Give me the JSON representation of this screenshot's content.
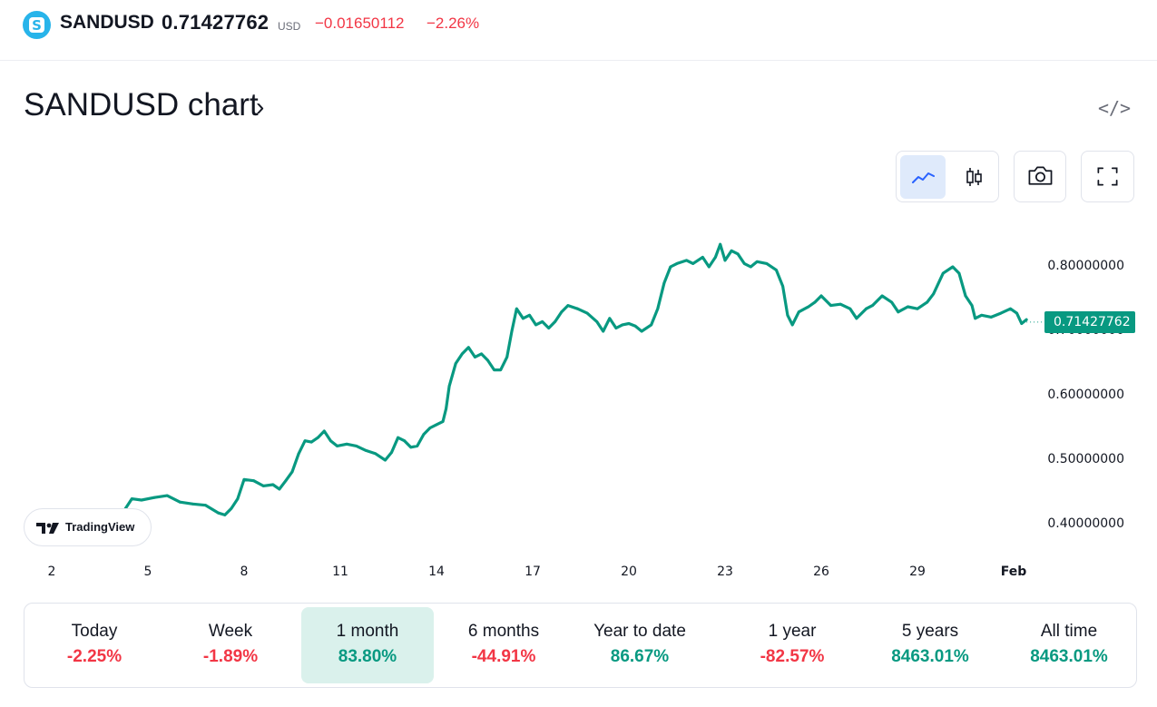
{
  "ticker": {
    "symbol": "SANDUSD",
    "logo_letter": "S",
    "price": "0.71427762",
    "currency": "USD",
    "change": "−0.01650112",
    "change_pct": "−2.26%"
  },
  "chart_header": {
    "title": "SANDUSD chart",
    "arrow": "›",
    "embed_icon": "code-embed-icon",
    "embed_symbol": "</>"
  },
  "toolbar": {
    "line_style_icon": "line-chart-icon",
    "candle_style_icon": "candlestick-icon",
    "snapshot_icon": "camera-icon",
    "fullscreen_icon": "fullscreen-icon",
    "active_style": "line"
  },
  "colors": {
    "line": "#089981",
    "negative": "#f23645",
    "positive": "#089981",
    "active_period_bg": "#daf1ec",
    "active_style_bg": "#dfeafb"
  },
  "chart_data": {
    "type": "line",
    "series": [
      {
        "points": [
          [
            4.3,
            0.425
          ],
          [
            4.5,
            0.44
          ],
          [
            4.8,
            0.438
          ],
          [
            5.2,
            0.442
          ],
          [
            5.6,
            0.445
          ],
          [
            6.0,
            0.435
          ],
          [
            6.4,
            0.432
          ],
          [
            6.8,
            0.43
          ],
          [
            7.2,
            0.418
          ],
          [
            7.4,
            0.415
          ],
          [
            7.6,
            0.425
          ],
          [
            7.8,
            0.44
          ],
          [
            8.0,
            0.47
          ],
          [
            8.3,
            0.468
          ],
          [
            8.6,
            0.46
          ],
          [
            8.9,
            0.462
          ],
          [
            9.1,
            0.455
          ],
          [
            9.3,
            0.468
          ],
          [
            9.5,
            0.482
          ],
          [
            9.7,
            0.51
          ],
          [
            9.9,
            0.53
          ],
          [
            10.1,
            0.528
          ],
          [
            10.3,
            0.535
          ],
          [
            10.5,
            0.545
          ],
          [
            10.7,
            0.53
          ],
          [
            10.9,
            0.522
          ],
          [
            11.2,
            0.525
          ],
          [
            11.5,
            0.522
          ],
          [
            11.8,
            0.515
          ],
          [
            12.1,
            0.51
          ],
          [
            12.4,
            0.5
          ],
          [
            12.6,
            0.512
          ],
          [
            12.8,
            0.535
          ],
          [
            13.0,
            0.53
          ],
          [
            13.2,
            0.52
          ],
          [
            13.4,
            0.522
          ],
          [
            13.6,
            0.54
          ],
          [
            13.8,
            0.55
          ],
          [
            14.0,
            0.555
          ],
          [
            14.2,
            0.56
          ],
          [
            14.3,
            0.58
          ],
          [
            14.4,
            0.615
          ],
          [
            14.6,
            0.65
          ],
          [
            14.8,
            0.665
          ],
          [
            15.0,
            0.675
          ],
          [
            15.2,
            0.66
          ],
          [
            15.4,
            0.665
          ],
          [
            15.6,
            0.655
          ],
          [
            15.8,
            0.64
          ],
          [
            16.0,
            0.64
          ],
          [
            16.2,
            0.66
          ],
          [
            16.35,
            0.7
          ],
          [
            16.5,
            0.735
          ],
          [
            16.7,
            0.72
          ],
          [
            16.9,
            0.725
          ],
          [
            17.1,
            0.71
          ],
          [
            17.3,
            0.715
          ],
          [
            17.5,
            0.705
          ],
          [
            17.7,
            0.715
          ],
          [
            17.9,
            0.73
          ],
          [
            18.1,
            0.74
          ],
          [
            18.4,
            0.735
          ],
          [
            18.7,
            0.728
          ],
          [
            19.0,
            0.715
          ],
          [
            19.2,
            0.7
          ],
          [
            19.4,
            0.72
          ],
          [
            19.6,
            0.705
          ],
          [
            19.8,
            0.71
          ],
          [
            20.0,
            0.712
          ],
          [
            20.2,
            0.708
          ],
          [
            20.4,
            0.7
          ],
          [
            20.7,
            0.71
          ],
          [
            20.9,
            0.735
          ],
          [
            21.1,
            0.775
          ],
          [
            21.3,
            0.8
          ],
          [
            21.5,
            0.805
          ],
          [
            21.8,
            0.81
          ],
          [
            22.0,
            0.805
          ],
          [
            22.3,
            0.815
          ],
          [
            22.5,
            0.8
          ],
          [
            22.7,
            0.815
          ],
          [
            22.85,
            0.835
          ],
          [
            23.0,
            0.81
          ],
          [
            23.2,
            0.825
          ],
          [
            23.4,
            0.82
          ],
          [
            23.6,
            0.805
          ],
          [
            23.8,
            0.8
          ],
          [
            24.0,
            0.808
          ],
          [
            24.3,
            0.805
          ],
          [
            24.6,
            0.795
          ],
          [
            24.8,
            0.77
          ],
          [
            24.95,
            0.725
          ],
          [
            25.1,
            0.71
          ],
          [
            25.3,
            0.73
          ],
          [
            25.6,
            0.738
          ],
          [
            25.8,
            0.745
          ],
          [
            26.0,
            0.755
          ],
          [
            26.3,
            0.74
          ],
          [
            26.6,
            0.742
          ],
          [
            26.9,
            0.735
          ],
          [
            27.1,
            0.72
          ],
          [
            27.4,
            0.735
          ],
          [
            27.6,
            0.74
          ],
          [
            27.9,
            0.755
          ],
          [
            28.2,
            0.745
          ],
          [
            28.4,
            0.73
          ],
          [
            28.7,
            0.738
          ],
          [
            29.0,
            0.735
          ],
          [
            29.3,
            0.745
          ],
          [
            29.5,
            0.758
          ],
          [
            29.8,
            0.79
          ],
          [
            30.1,
            0.8
          ],
          [
            30.3,
            0.79
          ],
          [
            30.5,
            0.755
          ],
          [
            30.7,
            0.74
          ],
          [
            30.8,
            0.72
          ],
          [
            31.0,
            0.725
          ],
          [
            31.3,
            0.722
          ],
          [
            31.6,
            0.728
          ],
          [
            31.9,
            0.735
          ],
          [
            32.1,
            0.728
          ],
          [
            32.25,
            0.712
          ],
          [
            32.4,
            0.718
          ]
        ]
      }
    ],
    "ylim": [
      0.38,
      0.84
    ],
    "xlim": [
      1.0,
      33.5
    ],
    "y_ticks": [
      "0.80000000",
      "0.70000000",
      "0.60000000",
      "0.50000000",
      "0.40000000"
    ],
    "y_tick_values": [
      0.8,
      0.7,
      0.6,
      0.5,
      0.4
    ],
    "x_ticks": [
      "2",
      "5",
      "8",
      "11",
      "14",
      "17",
      "20",
      "23",
      "26",
      "29",
      "Feb"
    ],
    "x_tick_values": [
      2,
      5,
      8,
      11,
      14,
      17,
      20,
      23,
      26,
      29,
      32
    ],
    "last_value": 0.71427762,
    "last_value_label": "0.71427762",
    "grid": false
  },
  "watermark": {
    "brand": "TradingView",
    "logo_icon": "tradingview-logo-icon"
  },
  "periods": [
    {
      "label": "Today",
      "value": "-2.25%",
      "sign": "neg"
    },
    {
      "label": "Week",
      "value": "-1.89%",
      "sign": "neg"
    },
    {
      "label": "1 month",
      "value": "83.80%",
      "sign": "pos",
      "active": true
    },
    {
      "label": "6 months",
      "value": "-44.91%",
      "sign": "neg"
    },
    {
      "label": "Year to date",
      "value": "86.67%",
      "sign": "pos"
    },
    {
      "label": "1 year",
      "value": "-82.57%",
      "sign": "neg"
    },
    {
      "label": "5 years",
      "value": "8463.01%",
      "sign": "pos"
    },
    {
      "label": "All time",
      "value": "8463.01%",
      "sign": "pos"
    }
  ]
}
